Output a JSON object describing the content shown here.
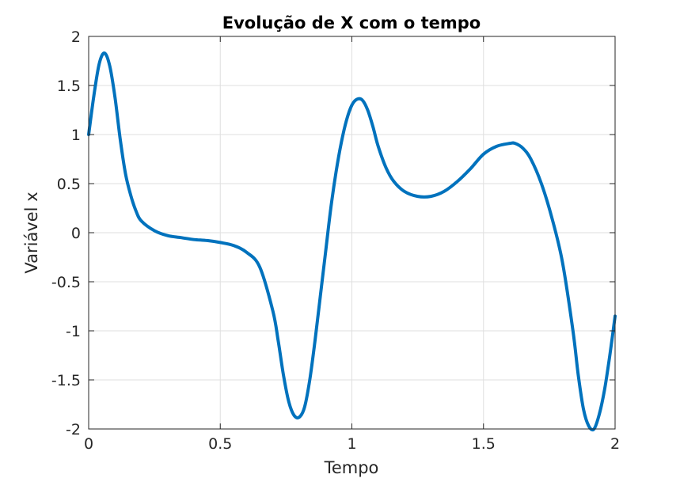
{
  "chart_data": {
    "type": "line",
    "title": "Evolução de X com o tempo",
    "xlabel": "Tempo",
    "ylabel": "Variável x",
    "xlim": [
      0,
      2
    ],
    "ylim": [
      -2,
      2
    ],
    "xticks": [
      0,
      0.5,
      1,
      1.5,
      2
    ],
    "xtick_labels": [
      "0",
      "0.5",
      "1",
      "1.5",
      "2"
    ],
    "yticks": [
      -2,
      -1.5,
      -1,
      -0.5,
      0,
      0.5,
      1,
      1.5,
      2
    ],
    "ytick_labels": [
      "-2",
      "-1.5",
      "-1",
      "-0.5",
      "0",
      "0.5",
      "1",
      "1.5",
      "2"
    ],
    "grid": true,
    "series": [
      {
        "color": "#0072bd",
        "x": [
          0,
          0.02,
          0.04,
          0.06,
          0.08,
          0.1,
          0.12,
          0.14,
          0.16,
          0.18,
          0.2,
          0.25,
          0.3,
          0.35,
          0.4,
          0.45,
          0.5,
          0.55,
          0.6,
          0.65,
          0.7,
          0.72,
          0.74,
          0.76,
          0.78,
          0.8,
          0.82,
          0.84,
          0.86,
          0.88,
          0.9,
          0.92,
          0.94,
          0.96,
          0.98,
          1.0,
          1.02,
          1.04,
          1.06,
          1.08,
          1.1,
          1.13,
          1.16,
          1.2,
          1.25,
          1.3,
          1.35,
          1.4,
          1.45,
          1.5,
          1.55,
          1.6,
          1.62,
          1.65,
          1.68,
          1.72,
          1.76,
          1.8,
          1.84,
          1.86,
          1.88,
          1.9,
          1.92,
          1.94,
          1.96,
          1.98,
          2.0
        ],
        "y": [
          1.0,
          1.4,
          1.72,
          1.83,
          1.7,
          1.38,
          0.95,
          0.6,
          0.38,
          0.22,
          0.12,
          0.02,
          -0.03,
          -0.05,
          -0.07,
          -0.08,
          -0.1,
          -0.13,
          -0.2,
          -0.35,
          -0.8,
          -1.1,
          -1.45,
          -1.72,
          -1.86,
          -1.88,
          -1.78,
          -1.5,
          -1.1,
          -0.65,
          -0.2,
          0.25,
          0.62,
          0.92,
          1.15,
          1.3,
          1.36,
          1.35,
          1.25,
          1.08,
          0.88,
          0.66,
          0.52,
          0.42,
          0.37,
          0.37,
          0.42,
          0.52,
          0.65,
          0.8,
          0.88,
          0.91,
          0.91,
          0.86,
          0.75,
          0.5,
          0.15,
          -0.3,
          -1.0,
          -1.45,
          -1.8,
          -1.97,
          -2.0,
          -1.85,
          -1.6,
          -1.25,
          -0.85
        ]
      }
    ]
  }
}
